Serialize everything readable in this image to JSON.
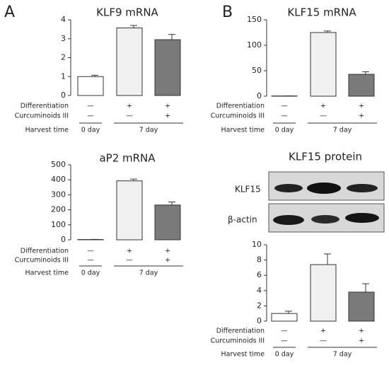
{
  "panels": [
    "A",
    "B"
  ],
  "blot": {
    "rows": [
      "KLF15",
      "β-actin"
    ]
  },
  "chart_data": [
    {
      "type": "bar",
      "title": "KLF9 mRNA",
      "categories": [
        null,
        null,
        null
      ],
      "values": [
        1.0,
        3.57,
        2.95
      ],
      "errors": [
        0.07,
        0.13,
        0.28
      ],
      "colors": [
        "#ffffff",
        "#f0f0f0",
        "#7a7a7a"
      ],
      "ylim": [
        0,
        4
      ],
      "yticks": [
        0,
        1,
        2,
        3,
        4
      ],
      "conditions": [
        {
          "label": "Differentiation",
          "values": [
            "—",
            "+",
            "+"
          ]
        },
        {
          "label": "Curcuminoids III",
          "values": [
            "—",
            "—",
            "+"
          ]
        }
      ],
      "harvest": {
        "label": "Harvest time",
        "groups": [
          "0 day",
          "7 day"
        ]
      }
    },
    {
      "type": "bar",
      "title": "aP2 mRNA",
      "categories": [
        null,
        null,
        null
      ],
      "values": [
        2,
        393,
        232
      ],
      "errors": [
        1,
        12,
        20
      ],
      "colors": [
        "#ffffff",
        "#f0f0f0",
        "#7a7a7a"
      ],
      "ylim": [
        0,
        500
      ],
      "yticks": [
        0,
        100,
        200,
        300,
        400,
        500
      ],
      "conditions": [
        {
          "label": "Differentiation",
          "values": [
            "—",
            "+",
            "+"
          ]
        },
        {
          "label": "Curcuminoids III",
          "values": [
            "—",
            "—",
            "+"
          ]
        }
      ],
      "harvest": {
        "label": "Harvest time",
        "groups": [
          "0 day",
          "7 day"
        ]
      }
    },
    {
      "type": "bar",
      "title": "KLF15 mRNA",
      "categories": [
        null,
        null,
        null
      ],
      "values": [
        0.5,
        125,
        43
      ],
      "errors": [
        0.2,
        3,
        5
      ],
      "colors": [
        "#ffffff",
        "#f0f0f0",
        "#7a7a7a"
      ],
      "ylim": [
        0,
        150
      ],
      "yticks": [
        0,
        50,
        100,
        150
      ],
      "conditions": [
        {
          "label": "Differentiation",
          "values": [
            "—",
            "+",
            "+"
          ]
        },
        {
          "label": "Curcuminoids III",
          "values": [
            "—",
            "—",
            "+"
          ]
        }
      ],
      "harvest": {
        "label": "Harvest time",
        "groups": [
          "0 day",
          "7 day"
        ]
      }
    },
    {
      "type": "bar",
      "title": "KLF15 protein",
      "categories": [
        null,
        null,
        null
      ],
      "values": [
        1.0,
        7.4,
        3.8
      ],
      "errors": [
        0.3,
        1.4,
        1.1
      ],
      "colors": [
        "#ffffff",
        "#f0f0f0",
        "#7a7a7a"
      ],
      "ylim": [
        0,
        10
      ],
      "yticks": [
        0,
        2,
        4,
        6,
        8,
        10
      ],
      "conditions": [
        {
          "label": "Differentiation",
          "values": [
            "—",
            "+",
            "+"
          ]
        },
        {
          "label": "Curcuminoids III",
          "values": [
            "—",
            "—",
            "+"
          ]
        }
      ],
      "harvest": {
        "label": "Harvest time",
        "groups": [
          "0 day",
          "7 day"
        ]
      }
    }
  ]
}
